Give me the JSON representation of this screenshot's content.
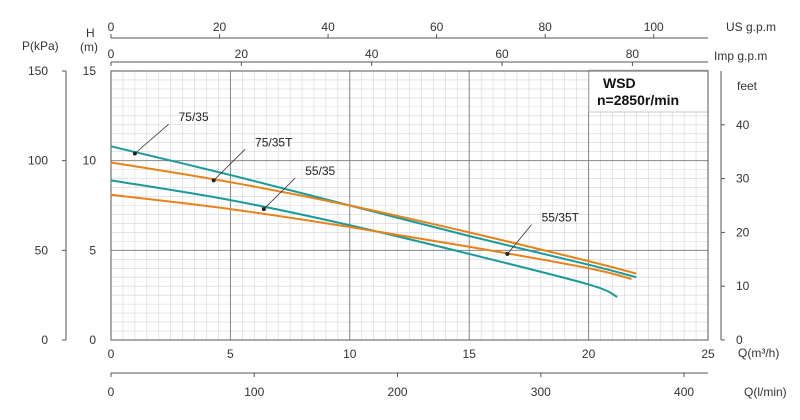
{
  "chart_data": {
    "type": "line",
    "title_box": {
      "line1": "WSD",
      "line2": "n=2850r/min"
    },
    "x_axis": {
      "label": "Q(m³/h)",
      "range": [
        0,
        25
      ],
      "ticks": [
        "0",
        "5",
        "10",
        "15",
        "20",
        "25"
      ]
    },
    "y_axis_left": {
      "label_line1": "H",
      "label_line2": "(m)",
      "range": [
        0,
        15
      ],
      "ticks": [
        "0",
        "5",
        "10",
        "15"
      ]
    },
    "y_axis_pressure": {
      "label": "P(kPa)",
      "range": [
        0,
        150
      ],
      "ticks": [
        "0",
        "50",
        "100",
        "150"
      ]
    },
    "y_axis_right": {
      "label": "feet",
      "range": [
        0,
        50
      ],
      "ticks": [
        "0",
        "10",
        "20",
        "30",
        "40"
      ]
    },
    "top_axis_us": {
      "label": "US g.p.m",
      "range": [
        0,
        110
      ],
      "ticks": [
        "0",
        "20",
        "40",
        "60",
        "80",
        "100"
      ]
    },
    "top_axis_imp": {
      "label": "Imp g.p.m",
      "range": [
        0,
        91.6
      ],
      "ticks": [
        "0",
        "20",
        "40",
        "60",
        "80"
      ]
    },
    "bottom_axis_lmin": {
      "label": "Q(l/min)",
      "range": [
        0,
        416.7
      ],
      "ticks": [
        "0",
        "100",
        "200",
        "300",
        "400"
      ]
    },
    "series": [
      {
        "name": "75/35",
        "color": "#1a9a9a",
        "x": [
          0,
          5,
          10,
          15,
          20,
          22
        ],
        "y": [
          10.8,
          9.2,
          7.5,
          5.8,
          4.2,
          3.5
        ],
        "marker": [
          1,
          10.4
        ]
      },
      {
        "name": "75/35T",
        "color": "#e8821a",
        "x": [
          0,
          5,
          10,
          15,
          20,
          22
        ],
        "y": [
          9.9,
          8.8,
          7.5,
          6.0,
          4.4,
          3.7
        ],
        "marker": [
          4.3,
          8.9
        ]
      },
      {
        "name": "55/35",
        "color": "#1a9a9a",
        "x": [
          0,
          5,
          10,
          15,
          20,
          21.2
        ],
        "y": [
          8.9,
          7.8,
          6.4,
          4.8,
          3.1,
          2.4
        ],
        "marker": [
          6.4,
          7.3
        ]
      },
      {
        "name": "55/35T",
        "color": "#e8821a",
        "x": [
          0,
          5,
          10,
          15,
          20,
          21.8
        ],
        "y": [
          8.1,
          7.3,
          6.3,
          5.2,
          4.0,
          3.4
        ],
        "marker": [
          16.6,
          4.8
        ]
      }
    ],
    "annotations": [
      {
        "series": "75/35",
        "text": "75/35",
        "at": [
          3,
          12.2
        ]
      },
      {
        "series": "75/35T",
        "text": "75/35T",
        "at": [
          6.2,
          10.8
        ]
      },
      {
        "series": "55/35",
        "text": "55/35",
        "at": [
          8.3,
          9.2
        ]
      },
      {
        "series": "55/35T",
        "text": "55/35T",
        "at": [
          18.2,
          6.6
        ]
      }
    ]
  }
}
